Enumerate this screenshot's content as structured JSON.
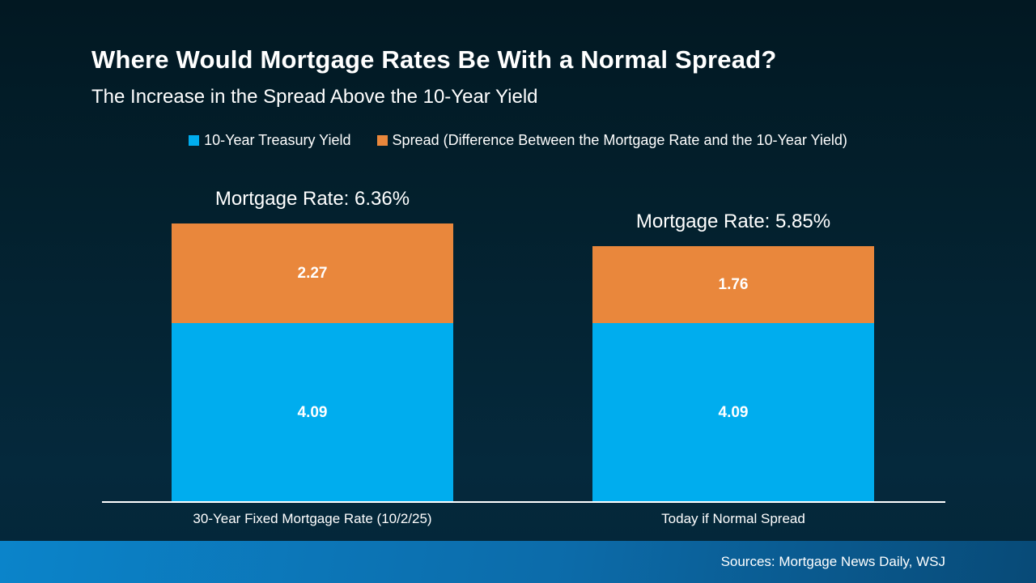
{
  "header": {
    "title": "Where Would Mortgage Rates Be With a Normal Spread?",
    "subtitle": "The Increase in the Spread Above the 10-Year Yield"
  },
  "legend": {
    "items": [
      {
        "label": "10-Year Treasury Yield",
        "color": "#00adee"
      },
      {
        "label": "Spread (Difference Between the Mortgage Rate and the 10-Year Yield)",
        "color": "#e9873c"
      }
    ]
  },
  "chart_data": {
    "type": "bar",
    "stacked": true,
    "title": "Where Would Mortgage Rates Be With a Normal Spread?",
    "subtitle": "The Increase in the Spread Above the 10-Year Yield",
    "categories": [
      "30-Year Fixed Mortgage Rate (10/2/25)",
      "Today if Normal Spread"
    ],
    "series": [
      {
        "name": "10-Year Treasury Yield",
        "color": "#00adee",
        "values": [
          4.09,
          4.09
        ]
      },
      {
        "name": "Spread (Difference Between the Mortgage Rate and the 10-Year Yield)",
        "color": "#e9873c",
        "values": [
          2.27,
          1.76
        ]
      }
    ],
    "bars": [
      {
        "category": "30-Year Fixed Mortgage Rate (10/2/25)",
        "total_label": "Mortgage Rate: 6.36%",
        "treasury": 4.09,
        "spread": 2.27,
        "treasury_label": "4.09",
        "spread_label": "2.27",
        "total": 6.36
      },
      {
        "category": "Today if Normal Spread",
        "total_label": "Mortgage Rate: 5.85%",
        "treasury": 4.09,
        "spread": 1.76,
        "treasury_label": "4.09",
        "spread_label": "1.76",
        "total": 5.85
      }
    ],
    "ylim": [
      0,
      6.36
    ],
    "grid": false,
    "legend_position": "top"
  },
  "footer": {
    "sources": "Sources: Mortgage News Daily, WSJ"
  },
  "colors": {
    "background_top": "#021822",
    "background_bottom": "#05293c",
    "treasury_blue": "#00adee",
    "spread_orange": "#e9873c",
    "footer_gradient_left": "#0b84ca",
    "footer_gradient_right": "#084a77",
    "axis_line": "#ffffff",
    "text": "#ffffff"
  }
}
